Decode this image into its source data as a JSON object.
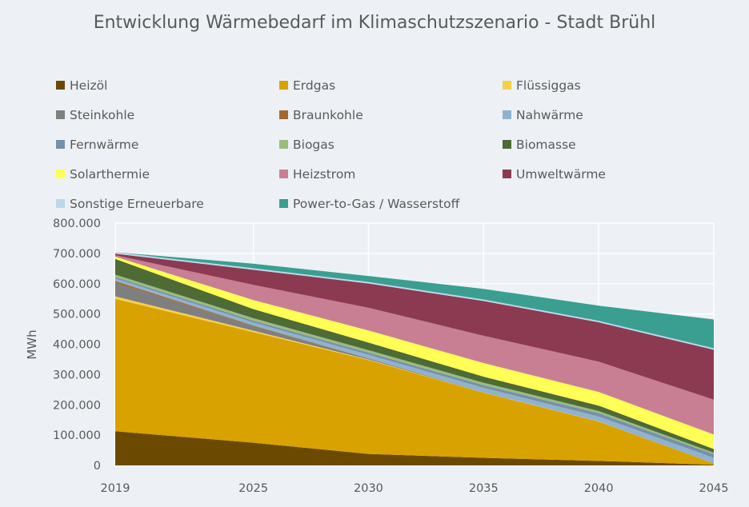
{
  "chart_data": {
    "type": "area",
    "stacked": true,
    "title": "Entwicklung Wärmebedarf im Klimaschutzszenario - Stadt Brühl",
    "ylabel": "MWh",
    "xlabel": "",
    "x": [
      2019,
      2025,
      2030,
      2035,
      2040,
      2045
    ],
    "x_tick_labels": [
      "2019",
      "2025",
      "2030",
      "2035",
      "2040",
      "2045"
    ],
    "ylim": [
      0,
      800000
    ],
    "y_tick_labels": [
      "0",
      "100.000",
      "200.000",
      "300.000",
      "400.000",
      "500.000",
      "600.000",
      "700.000",
      "800.000"
    ],
    "grid": true,
    "legend_position": "top",
    "series": [
      {
        "name": "Heizöl",
        "color": "#6b4a00",
        "values": [
          113000,
          75000,
          38000,
          25000,
          15000,
          2000
        ]
      },
      {
        "name": "Erdgas",
        "color": "#d8a200",
        "values": [
          437000,
          365000,
          310000,
          215000,
          130000,
          5000
        ]
      },
      {
        "name": "Flüssiggas",
        "color": "#f5d04a",
        "values": [
          8000,
          5000,
          2000,
          1000,
          500,
          0
        ]
      },
      {
        "name": "Steinkohle",
        "color": "#7f7f7f",
        "values": [
          45000,
          15000,
          3000,
          1000,
          0,
          0
        ]
      },
      {
        "name": "Braunkohle",
        "color": "#a5672d",
        "values": [
          6000,
          2000,
          500,
          0,
          0,
          0
        ]
      },
      {
        "name": "Nahwärme",
        "color": "#8fb3cf",
        "values": [
          8000,
          10000,
          12000,
          14000,
          16000,
          18000
        ]
      },
      {
        "name": "Fernwärme",
        "color": "#7690aa",
        "values": [
          5000,
          6000,
          7000,
          9000,
          11000,
          12000
        ]
      },
      {
        "name": "Biogas",
        "color": "#9bbb7e",
        "values": [
          8000,
          8000,
          8000,
          8000,
          7000,
          5000
        ]
      },
      {
        "name": "Biomasse",
        "color": "#4e6a35",
        "values": [
          52000,
          30000,
          25000,
          20000,
          18000,
          12000
        ]
      },
      {
        "name": "Solarthermie",
        "color": "#ffff55",
        "values": [
          7000,
          30000,
          40000,
          45000,
          45000,
          48000
        ]
      },
      {
        "name": "Heizstrom",
        "color": "#c97f93",
        "values": [
          5000,
          50000,
          75000,
          90000,
          100000,
          115000
        ]
      },
      {
        "name": "Umweltwärme",
        "color": "#8b3a52",
        "values": [
          5000,
          50000,
          80000,
          115000,
          130000,
          165000
        ]
      },
      {
        "name": "Sonstige Erneuerbare",
        "color": "#bcd7ea",
        "values": [
          5000,
          5000,
          5000,
          5000,
          5000,
          5000
        ]
      },
      {
        "name": "Power-to-Gas / Wasserstoff",
        "color": "#3a9f91",
        "values": [
          0,
          15000,
          20000,
          35000,
          50000,
          95000
        ]
      }
    ]
  }
}
